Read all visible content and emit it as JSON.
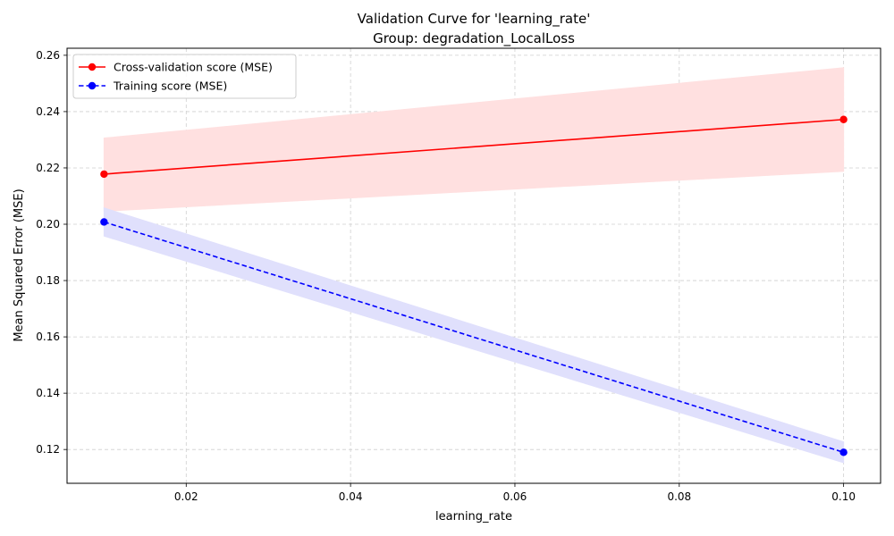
{
  "chart_data": {
    "type": "line",
    "title": "Validation Curve for 'learning_rate'",
    "subtitle": "Group: degradation_LocalLoss",
    "xlabel": "learning_rate",
    "ylabel": "Mean Squared Error (MSE)",
    "xlim": [
      0.0055,
      0.1045
    ],
    "ylim": [
      0.108,
      0.2625
    ],
    "x_ticks": [
      0.02,
      0.04,
      0.06,
      0.08,
      0.1
    ],
    "x_tick_labels": [
      "0.02",
      "0.04",
      "0.06",
      "0.08",
      "0.10"
    ],
    "y_ticks": [
      0.12,
      0.14,
      0.16,
      0.18,
      0.2,
      0.22,
      0.24,
      0.26
    ],
    "y_tick_labels": [
      "0.12",
      "0.14",
      "0.16",
      "0.18",
      "0.20",
      "0.22",
      "0.24",
      "0.26"
    ],
    "grid": true,
    "legend_position": "top-left",
    "x": [
      0.01,
      0.1
    ],
    "series": [
      {
        "name": "Cross-validation score (MSE)",
        "values": [
          0.2178,
          0.2372
        ],
        "band_lower": [
          0.2046,
          0.2188
        ],
        "band_upper": [
          0.2306,
          0.2556
        ],
        "color": "#ff0000",
        "band_color": "#ffe0e0",
        "line_style": "solid",
        "marker": "circle"
      },
      {
        "name": "Training score (MSE)",
        "values": [
          0.2008,
          0.119
        ],
        "band_lower": [
          0.1958,
          0.1153
        ],
        "band_upper": [
          0.2058,
          0.1227
        ],
        "color": "#0000ff",
        "band_color": "#e0e0fc",
        "line_style": "dashed",
        "marker": "circle"
      }
    ]
  }
}
